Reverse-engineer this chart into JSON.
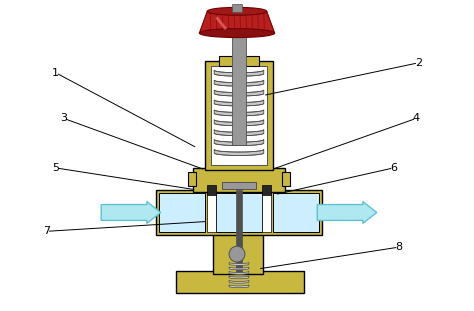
{
  "bg_color": "#ffffff",
  "olive": "#c8b840",
  "olive_dark": "#6a6010",
  "gray_light": "#c8c8c8",
  "gray_med": "#989898",
  "gray_dark": "#505050",
  "red_knob": "#b82020",
  "red_knob_light": "#d04040",
  "cyan_arrow": "#b0e8f0",
  "cyan_arrow_stroke": "#60c0d0",
  "black": "#000000",
  "white": "#ffffff",
  "light_blue": "#cceeff",
  "dark_block": "#282828",
  "annotations": {
    "1": {
      "lp": [
        0.115,
        0.755
      ],
      "tp": [
        0.385,
        0.625
      ]
    },
    "2": {
      "lp": [
        0.885,
        0.8
      ],
      "tp": [
        0.545,
        0.74
      ]
    },
    "3": {
      "lp": [
        0.125,
        0.66
      ],
      "tp": [
        0.375,
        0.57
      ]
    },
    "4": {
      "lp": [
        0.875,
        0.645
      ],
      "tp": [
        0.6,
        0.57
      ]
    },
    "5": {
      "lp": [
        0.11,
        0.545
      ],
      "tp": [
        0.37,
        0.49
      ]
    },
    "6": {
      "lp": [
        0.835,
        0.5
      ],
      "tp": [
        0.61,
        0.455
      ]
    },
    "7": {
      "lp": [
        0.095,
        0.32
      ],
      "tp": [
        0.405,
        0.34
      ]
    },
    "8": {
      "lp": [
        0.85,
        0.27
      ],
      "tp": [
        0.56,
        0.195
      ]
    },
    "2b": {
      "lp": [
        0.885,
        0.8
      ],
      "tp": [
        0.545,
        0.74
      ]
    }
  }
}
